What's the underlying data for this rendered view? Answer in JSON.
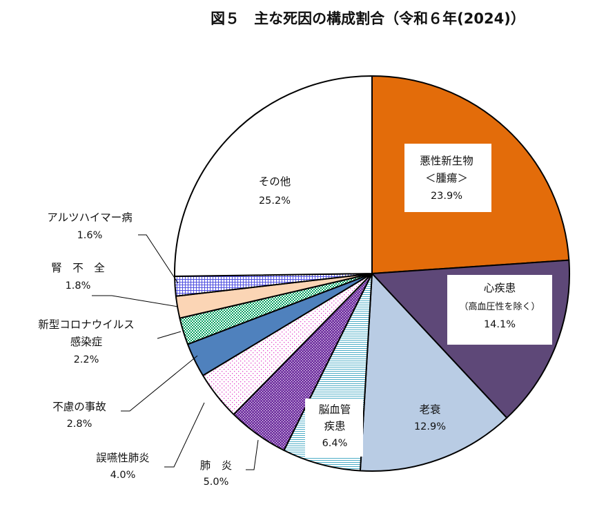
{
  "chart_data": {
    "type": "pie",
    "title": "図５　主な死因の構成割合（令和６年(2024)）",
    "start_angle_deg": 0,
    "direction": "clockwise",
    "slices": [
      {
        "label_lines": [
          "悪性新生物",
          "＜腫瘍＞"
        ],
        "value": 23.9,
        "value_text": "23.9%",
        "color": "#e36c0a",
        "pattern": "solid"
      },
      {
        "label_lines": [
          "心疾患",
          "（高血圧性を除く）"
        ],
        "value": 14.1,
        "value_text": "14.1%",
        "color": "#5e4878",
        "pattern": "solid"
      },
      {
        "label_lines": [
          "老衰"
        ],
        "value": 12.9,
        "value_text": "12.9%",
        "color": "#b9cce4",
        "pattern": "solid"
      },
      {
        "label_lines": [
          "脳血管",
          "疾患"
        ],
        "value": 6.4,
        "value_text": "6.4%",
        "color": "#4bacc6",
        "pattern": "hstripes"
      },
      {
        "label_lines": [
          "肺　炎"
        ],
        "value": 5.0,
        "value_text": "5.0%",
        "color": "#7030a0",
        "pattern": "dots"
      },
      {
        "label_lines": [
          "誤嚥性肺炎"
        ],
        "value": 4.0,
        "value_text": "4.0%",
        "color": "#e040c8",
        "pattern": "sparse-dots"
      },
      {
        "label_lines": [
          "不慮の事故"
        ],
        "value": 2.8,
        "value_text": "2.8%",
        "color": "#4f81bd",
        "pattern": "solid"
      },
      {
        "label_lines": [
          "新型コロナウイルス",
          "感染症"
        ],
        "value": 2.2,
        "value_text": "2.2%",
        "color": "#00a060",
        "pattern": "checker"
      },
      {
        "label_lines": [
          "腎　不　全"
        ],
        "value": 1.8,
        "value_text": "1.8%",
        "color": "#fbd5b5",
        "pattern": "solid"
      },
      {
        "label_lines": [
          "アルツハイマー病"
        ],
        "value": 1.6,
        "value_text": "1.6%",
        "color": "#5050e0",
        "pattern": "grid"
      },
      {
        "label_lines": [
          "その他"
        ],
        "value": 25.2,
        "value_text": "25.2%",
        "color": "#ffffff",
        "pattern": "solid"
      }
    ]
  }
}
